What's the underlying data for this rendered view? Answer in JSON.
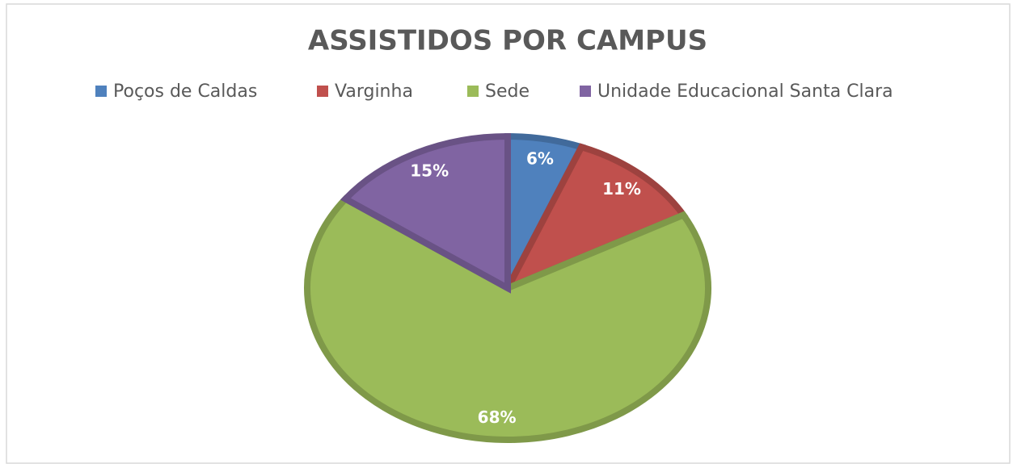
{
  "chart_data": {
    "type": "pie",
    "title": "ASSISTIDOS POR CAMPUS",
    "categories": [
      "Poços de Caldas",
      "Varginha",
      "Sede",
      "Unidade Educacional Santa Clara"
    ],
    "values": [
      6,
      11,
      68,
      15
    ],
    "value_labels": [
      "6%",
      "11%",
      "68%",
      "15%"
    ],
    "colors": [
      "#4f81bd",
      "#c0504d",
      "#9bbb59",
      "#8064a2"
    ],
    "legend": "top"
  }
}
